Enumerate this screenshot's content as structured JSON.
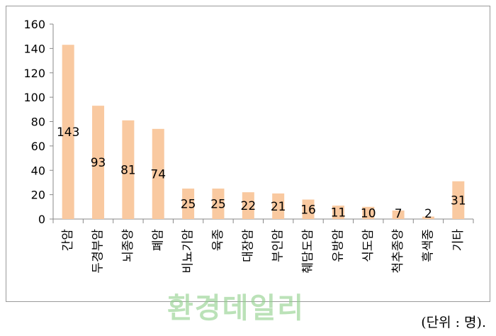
{
  "chart_data": {
    "type": "bar",
    "title": "",
    "xlabel": "",
    "ylabel": "",
    "ylim": [
      0,
      160
    ],
    "yticks": [
      0,
      20,
      40,
      60,
      80,
      100,
      120,
      140,
      160
    ],
    "categories": [
      "간암",
      "두경부암",
      "뇌종양",
      "폐암",
      "비뇨기암",
      "육종",
      "대장암",
      "부인암",
      "췌담도암",
      "유방암",
      "식도암",
      "척추종양",
      "흑색종",
      "기타"
    ],
    "values": [
      143,
      93,
      81,
      74,
      25,
      25,
      22,
      21,
      16,
      11,
      10,
      7,
      2,
      31
    ],
    "bar_color": "#f9c9a0",
    "grid": false,
    "legend": "none"
  },
  "watermark": "환경데일리",
  "unit_note": "(단위 : 명)."
}
